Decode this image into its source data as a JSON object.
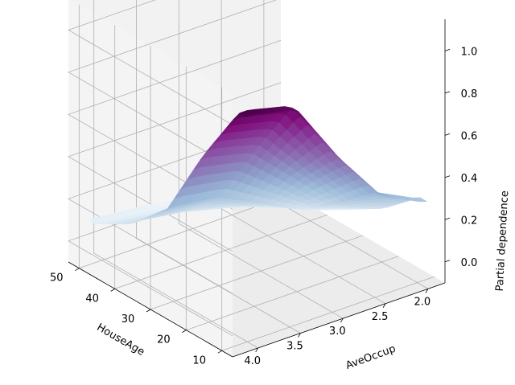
{
  "chart_data": {
    "type": "surface3d",
    "title": "",
    "x": {
      "label": "AveOccup",
      "range": [
        1.8,
        4.3
      ],
      "ticks": [
        "2.0",
        "2.5",
        "3.0",
        "3.5",
        "4.0"
      ]
    },
    "y": {
      "label": "HouseAge",
      "range": [
        7,
        53
      ],
      "ticks": [
        "10",
        "20",
        "30",
        "40",
        "50"
      ]
    },
    "z": {
      "label": "Partial dependence",
      "range": [
        -0.1,
        1.15
      ],
      "ticks": [
        "0.0",
        "0.2",
        "0.4",
        "0.6",
        "0.8",
        "1.0"
      ]
    },
    "colormap": "BuPu",
    "colors": {
      "low": "#f7fcfd",
      "mid": "#8c96c6",
      "high": "#4d004b"
    },
    "grid": true,
    "surface_samples": {
      "aveoccup": [
        2.0,
        2.5,
        3.0,
        3.5,
        4.0
      ],
      "houseage": [
        10,
        20,
        30,
        40,
        50
      ],
      "partial_dependence": [
        [
          0.3,
          0.4,
          0.65,
          0.95,
          1.0
        ],
        [
          0.15,
          0.25,
          0.45,
          0.65,
          0.7
        ],
        [
          0.05,
          0.12,
          0.22,
          0.32,
          0.35
        ],
        [
          0.0,
          0.04,
          0.1,
          0.15,
          0.18
        ],
        [
          -0.02,
          0.0,
          0.03,
          0.06,
          0.08
        ]
      ]
    }
  }
}
